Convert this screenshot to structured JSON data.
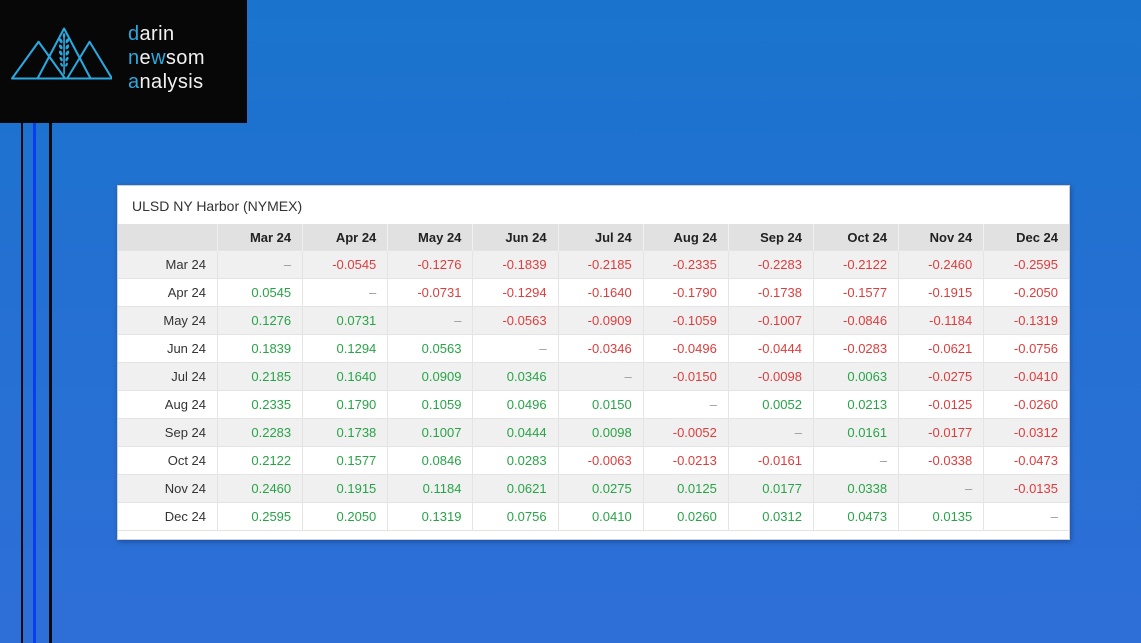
{
  "logo": {
    "word1_accent": "d",
    "word1_rest": "arin",
    "word2_accent": "n",
    "word2_mid": "e",
    "word2_accent2": "w",
    "word2_rest": "som",
    "word3_accent": "a",
    "word3_rest": "nalysis",
    "accent_color": "#2aa9e0"
  },
  "table": {
    "title": "ULSD NY Harbor (NYMEX)",
    "empty_cell": "–",
    "columns": [
      "Mar 24",
      "Apr 24",
      "May 24",
      "Jun 24",
      "Jul 24",
      "Aug 24",
      "Sep 24",
      "Oct 24",
      "Nov 24",
      "Dec 24"
    ],
    "rows": [
      {
        "label": "Mar 24",
        "cells": [
          "–",
          "-0.0545",
          "-0.1276",
          "-0.1839",
          "-0.2185",
          "-0.2335",
          "-0.2283",
          "-0.2122",
          "-0.2460",
          "-0.2595"
        ]
      },
      {
        "label": "Apr 24",
        "cells": [
          "0.0545",
          "–",
          "-0.0731",
          "-0.1294",
          "-0.1640",
          "-0.1790",
          "-0.1738",
          "-0.1577",
          "-0.1915",
          "-0.2050"
        ]
      },
      {
        "label": "May 24",
        "cells": [
          "0.1276",
          "0.0731",
          "–",
          "-0.0563",
          "-0.0909",
          "-0.1059",
          "-0.1007",
          "-0.0846",
          "-0.1184",
          "-0.1319"
        ]
      },
      {
        "label": "Jun 24",
        "cells": [
          "0.1839",
          "0.1294",
          "0.0563",
          "–",
          "-0.0346",
          "-0.0496",
          "-0.0444",
          "-0.0283",
          "-0.0621",
          "-0.0756"
        ]
      },
      {
        "label": "Jul 24",
        "cells": [
          "0.2185",
          "0.1640",
          "0.0909",
          "0.0346",
          "–",
          "-0.0150",
          "-0.0098",
          "0.0063",
          "-0.0275",
          "-0.0410"
        ]
      },
      {
        "label": "Aug 24",
        "cells": [
          "0.2335",
          "0.1790",
          "0.1059",
          "0.0496",
          "0.0150",
          "–",
          "0.0052",
          "0.0213",
          "-0.0125",
          "-0.0260"
        ]
      },
      {
        "label": "Sep 24",
        "cells": [
          "0.2283",
          "0.1738",
          "0.1007",
          "0.0444",
          "0.0098",
          "-0.0052",
          "–",
          "0.0161",
          "-0.0177",
          "-0.0312"
        ]
      },
      {
        "label": "Oct 24",
        "cells": [
          "0.2122",
          "0.1577",
          "0.0846",
          "0.0283",
          "-0.0063",
          "-0.0213",
          "-0.0161",
          "–",
          "-0.0338",
          "-0.0473"
        ]
      },
      {
        "label": "Nov 24",
        "cells": [
          "0.2460",
          "0.1915",
          "0.1184",
          "0.0621",
          "0.0275",
          "0.0125",
          "0.0177",
          "0.0338",
          "–",
          "-0.0135"
        ]
      },
      {
        "label": "Dec 24",
        "cells": [
          "0.2595",
          "0.2050",
          "0.1319",
          "0.0756",
          "0.0410",
          "0.0260",
          "0.0312",
          "0.0473",
          "0.0135",
          "–"
        ]
      }
    ],
    "colors": {
      "negative": "#dd3d3d",
      "positive": "#28a447",
      "empty_dash": "#999999"
    }
  }
}
